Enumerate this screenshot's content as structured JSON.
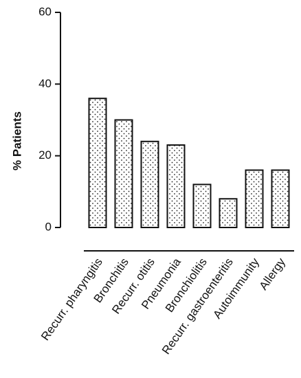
{
  "chart_data": {
    "type": "bar",
    "y_label": "% Patients",
    "categories": [
      "Recurr. pharyngitis",
      "Bronchitis",
      "Recurr. otitis",
      "Pneumonia",
      "Bronchiolitis",
      "Recurr. gastroenteritis",
      "Autoimmunity",
      "Allergy"
    ],
    "values": [
      36,
      30,
      24,
      23,
      12,
      8,
      16,
      16
    ],
    "ylim": [
      0,
      60
    ],
    "yticks": [
      0,
      20,
      40,
      60
    ],
    "grid": false
  }
}
